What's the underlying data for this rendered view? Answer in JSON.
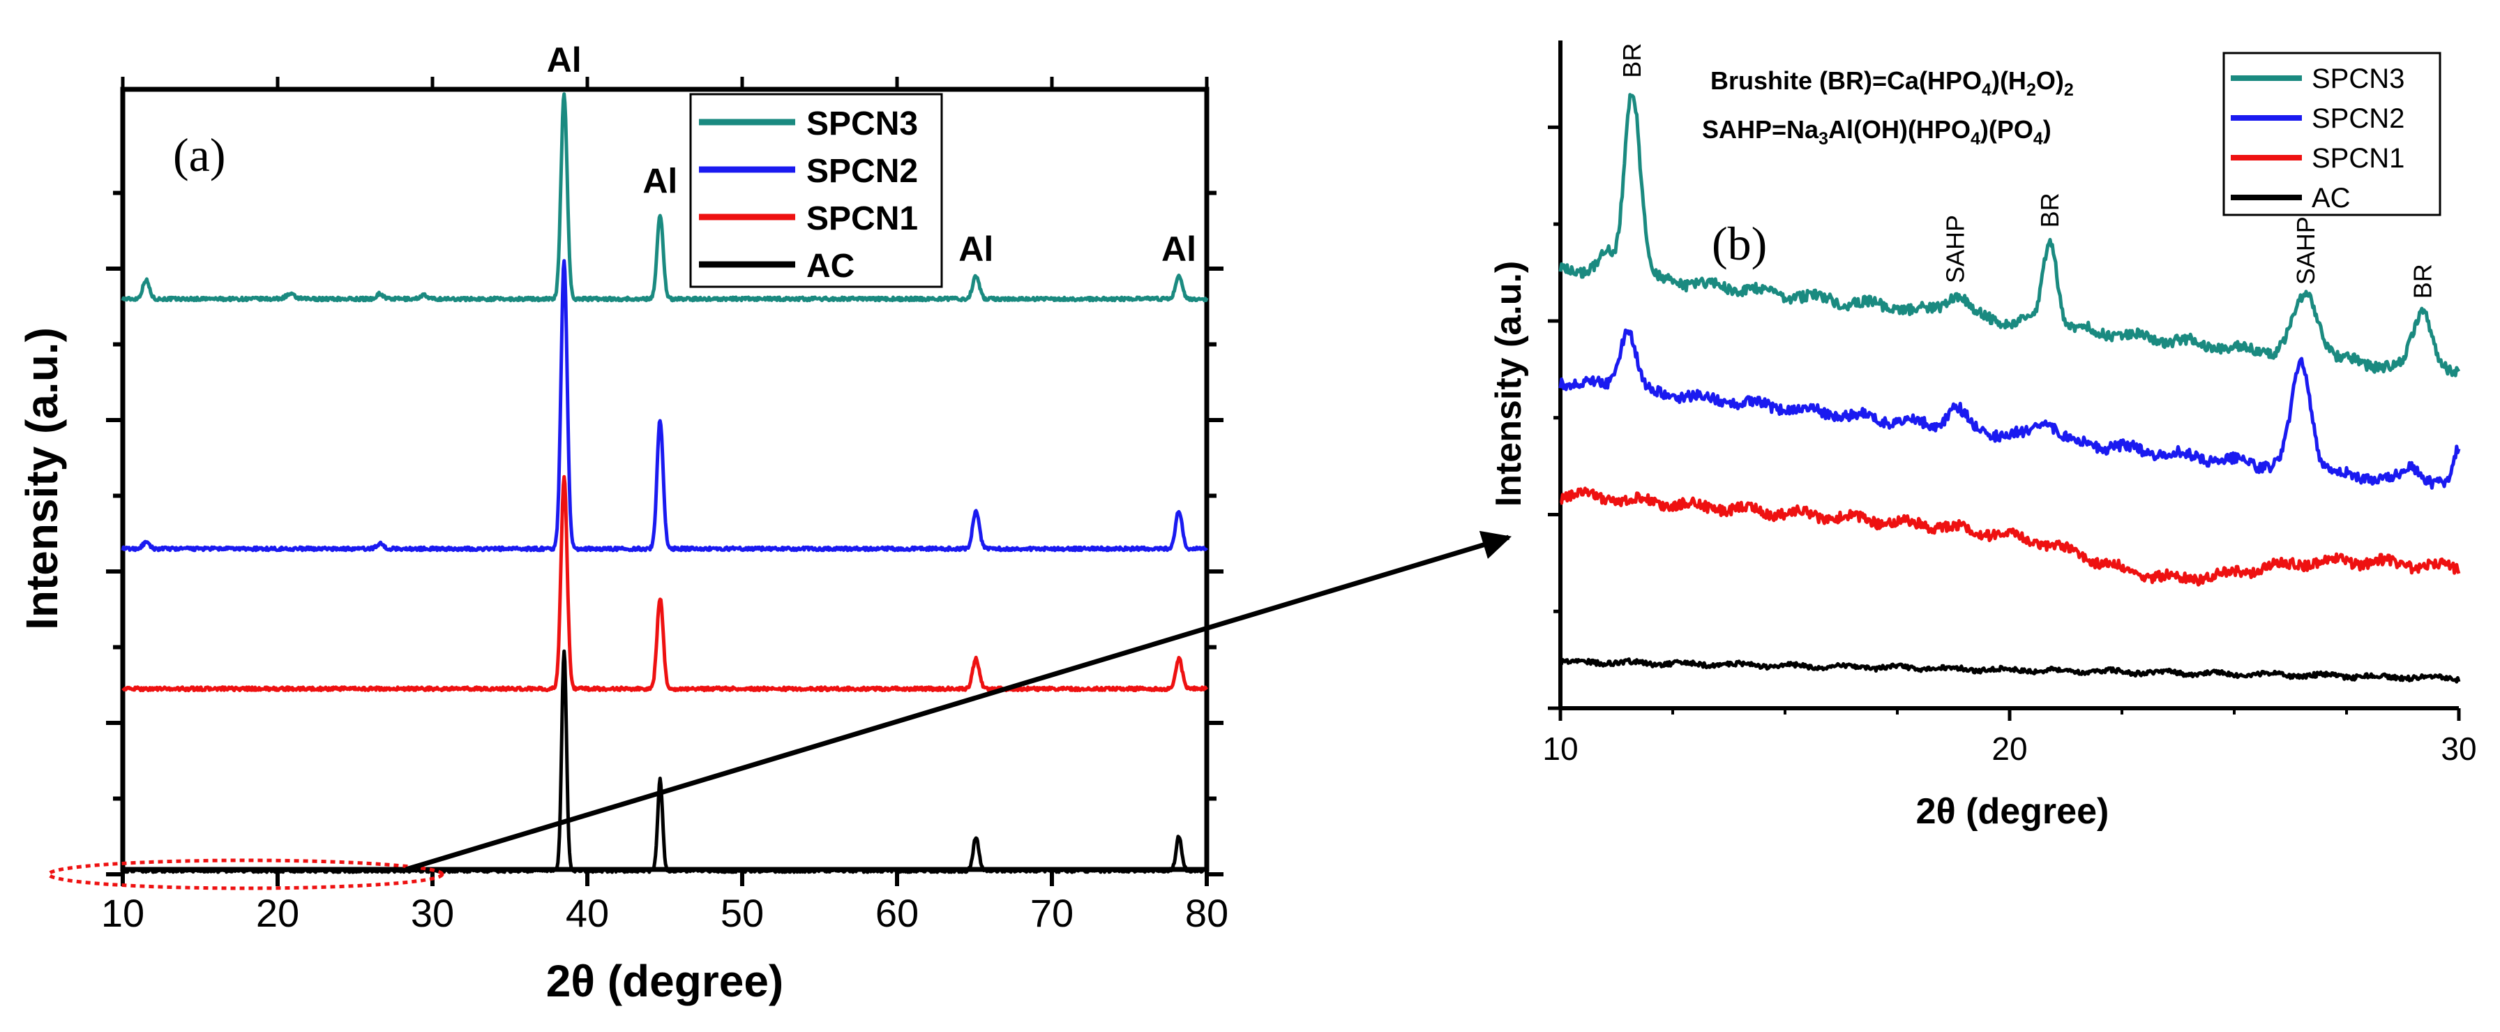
{
  "colors": {
    "SPCN3": "#1a8a80",
    "SPCN2": "#1a1af0",
    "SPCN1": "#ee1111",
    "AC": "#000000",
    "axis": "#000000",
    "callout": "#ee1111"
  },
  "chart_data": [
    {
      "id": "a",
      "type": "line",
      "panel_label": "(a)",
      "xlabel": "2θ (degree)",
      "ylabel": "Intensity (a.u.)",
      "xlim": [
        10,
        80
      ],
      "xticks": [
        10,
        20,
        30,
        40,
        50,
        60,
        70,
        80
      ],
      "ylim": [
        0,
        100
      ],
      "legend": [
        "SPCN3",
        "SPCN2",
        "SPCN1",
        "AC"
      ],
      "legend_position": "top-right",
      "series": [
        {
          "name": "SPCN3",
          "baseline": 76,
          "peaks": [
            [
              11.5,
              2.5,
              0.3
            ],
            [
              20.8,
              0.6,
              0.4
            ],
            [
              26.6,
              0.7,
              0.3
            ],
            [
              29.4,
              0.5,
              0.3
            ],
            [
              38.5,
              27,
              0.28
            ],
            [
              44.7,
              11,
              0.28
            ],
            [
              65.1,
              3,
              0.3
            ],
            [
              78.2,
              3,
              0.3
            ]
          ]
        },
        {
          "name": "SPCN2",
          "baseline": 43,
          "peaks": [
            [
              11.5,
              0.8,
              0.3
            ],
            [
              26.6,
              0.7,
              0.3
            ],
            [
              38.5,
              38,
              0.28
            ],
            [
              44.7,
              17,
              0.28
            ],
            [
              65.1,
              5,
              0.3
            ],
            [
              78.2,
              5,
              0.3
            ]
          ]
        },
        {
          "name": "SPCN1",
          "baseline": 24.5,
          "peaks": [
            [
              38.5,
              28,
              0.28
            ],
            [
              44.7,
              12,
              0.28
            ],
            [
              65.1,
              4,
              0.3
            ],
            [
              78.2,
              4,
              0.3
            ]
          ]
        },
        {
          "name": "AC",
          "baseline": 0.5,
          "peaks": [
            [
              38.5,
              29,
              0.22
            ],
            [
              44.7,
              12,
              0.22
            ],
            [
              65.1,
              4.5,
              0.25
            ],
            [
              78.2,
              4.5,
              0.25
            ]
          ]
        }
      ],
      "annotations": [
        {
          "text": "Al",
          "x": 38.5,
          "y": 106
        },
        {
          "text": "Al",
          "x": 44.7,
          "y": 90
        },
        {
          "text": "Al",
          "x": 65.1,
          "y": 81
        },
        {
          "text": "Al",
          "x": 78.2,
          "y": 81
        }
      ],
      "zoom_region": {
        "x": [
          10,
          30
        ],
        "y": 0
      }
    },
    {
      "id": "b",
      "type": "line",
      "panel_label": "(b)",
      "xlabel": "2θ (degree)",
      "ylabel": "Intensity (a.u.)",
      "xlim": [
        10,
        30
      ],
      "xticks": [
        10,
        20,
        30
      ],
      "ylim": [
        0,
        100
      ],
      "legend": [
        "SPCN3",
        "SPCN2",
        "SPCN1",
        "AC"
      ],
      "legend_position": "top-right",
      "formulas": [
        {
          "prefix": "Brushite (BR)=Ca(HPO",
          "sub1": "4",
          "mid": ")(H",
          "sub2": "2",
          "mid2": "O)",
          "sub3": "2",
          "end": ""
        },
        {
          "prefix": "SAHP=Na",
          "sub1": "3",
          "mid": "Al(OH)(HPO",
          "sub2": "4",
          "mid2": ")(PO",
          "sub3": "4",
          "end": ")"
        }
      ],
      "series": [
        {
          "name": "SPCN3",
          "start": 66,
          "end": 50,
          "peaks": [
            [
              11.0,
              3,
              0.2
            ],
            [
              11.6,
              28,
              0.25
            ],
            [
              18.8,
              3,
              0.35
            ],
            [
              20.9,
              13,
              0.22
            ],
            [
              26.6,
              9,
              0.4
            ],
            [
              29.2,
              9,
              0.3
            ]
          ]
        },
        {
          "name": "SPCN2",
          "start": 49,
          "end": 33,
          "peaks": [
            [
              11.5,
              9,
              0.25
            ],
            [
              18.8,
              3,
              0.3
            ],
            [
              20.8,
              3,
              0.3
            ],
            [
              26.5,
              16,
              0.3
            ],
            [
              29.0,
              2.5,
              0.3
            ],
            [
              30,
              6,
              0.15
            ]
          ]
        },
        {
          "name": "SPCN1",
          "start": 32,
          "end": 21,
          "peaks": [],
          "dip": [
            23.5,
            5,
            2.5
          ]
        },
        {
          "name": "AC",
          "start": 7,
          "end": 4.5,
          "peaks": []
        }
      ],
      "annotations": [
        {
          "text": "BR",
          "x": 11.6,
          "rotated": true
        },
        {
          "text": "SAHP",
          "x": 18.8,
          "rotated": true
        },
        {
          "text": "BR",
          "x": 20.9,
          "rotated": true
        },
        {
          "text": "SAHP",
          "x": 26.6,
          "rotated": true
        },
        {
          "text": "BR",
          "x": 29.2,
          "rotated": true
        }
      ]
    }
  ]
}
